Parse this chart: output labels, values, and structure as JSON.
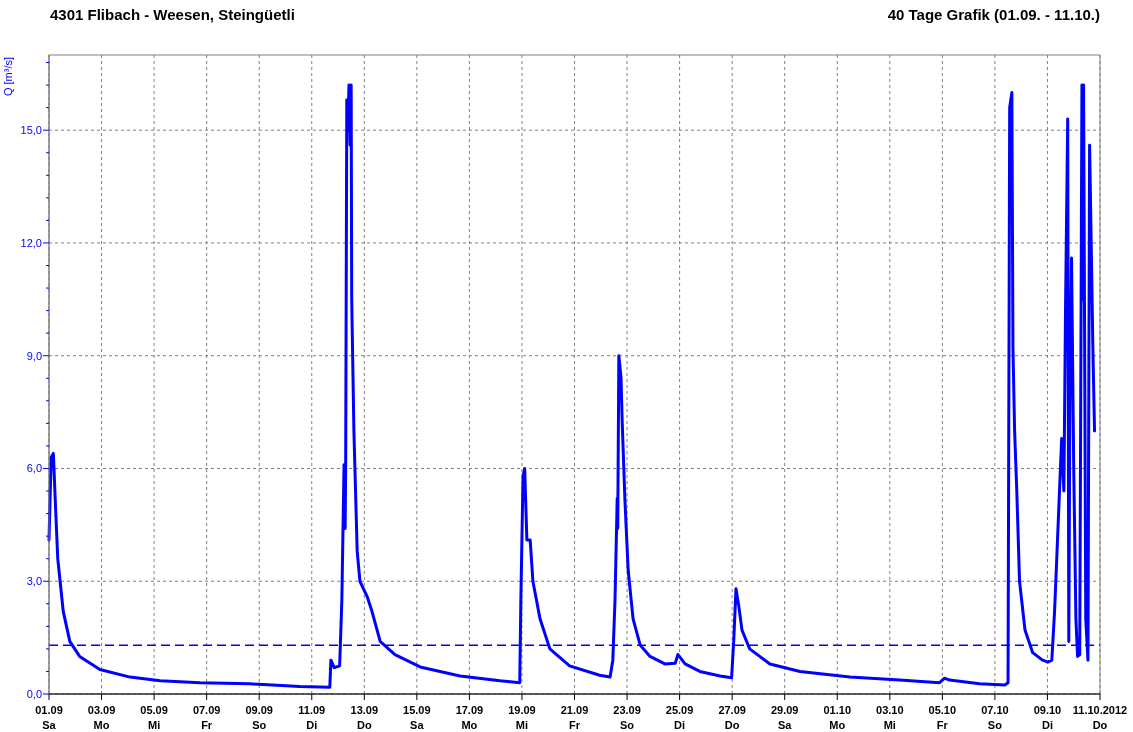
{
  "chart_data": {
    "type": "line",
    "title": "4301 Flibach - Weesen, Steingüetli",
    "subtitle": "40 Tage Grafik (01.09. - 11.10.)",
    "ylabel": "Q [m³/s]",
    "xlim": [
      "2012-09-01",
      "2012-10-11"
    ],
    "xticks": [
      {
        "value": "2012-09-01",
        "label": "01.09\nSa"
      },
      {
        "value": "2012-09-03",
        "label": "03.09\nMo"
      },
      {
        "value": "2012-09-05",
        "label": "05.09\nMi"
      },
      {
        "value": "2012-09-07",
        "label": "07.09\nFr"
      },
      {
        "value": "2012-09-09",
        "label": "09.09\nSo"
      },
      {
        "value": "2012-09-11",
        "label": "11.09\nDi"
      },
      {
        "value": "2012-09-13",
        "label": "13.09\nDo"
      },
      {
        "value": "2012-09-15",
        "label": "15.09\nSa"
      },
      {
        "value": "2012-09-17",
        "label": "17.09\nMo"
      },
      {
        "value": "2012-09-19",
        "label": "19.09\nMi"
      },
      {
        "value": "2012-09-21",
        "label": "21.09\nFr"
      },
      {
        "value": "2012-09-23",
        "label": "23.09\nSo"
      },
      {
        "value": "2012-09-25",
        "label": "25.09\nDi"
      },
      {
        "value": "2012-09-27",
        "label": "27.09\nDo"
      },
      {
        "value": "2012-09-29",
        "label": "29.09\nSa"
      },
      {
        "value": "2012-10-01",
        "label": "01.10\nMo"
      },
      {
        "value": "2012-10-03",
        "label": "03.10\nMi"
      },
      {
        "value": "2012-10-05",
        "label": "05.10\nFr"
      },
      {
        "value": "2012-10-07",
        "label": "07.10\nSo"
      },
      {
        "value": "2012-10-09",
        "label": "09.10\nDi"
      },
      {
        "value": "2012-10-11",
        "label": "11.10.2012\nDo"
      }
    ],
    "ylim": [
      0,
      17
    ],
    "yticks": [
      {
        "value": 0,
        "label": "0,0"
      },
      {
        "value": 0.6,
        "label": null
      },
      {
        "value": 1.2,
        "label": null
      },
      {
        "value": 1.8,
        "label": null
      },
      {
        "value": 2.4,
        "label": null
      },
      {
        "value": 3,
        "label": "3,0"
      },
      {
        "value": 3.6,
        "label": null
      },
      {
        "value": 4.2,
        "label": null
      },
      {
        "value": 4.8,
        "label": null
      },
      {
        "value": 5.4,
        "label": null
      },
      {
        "value": 6,
        "label": "6,0"
      },
      {
        "value": 6.6,
        "label": null
      },
      {
        "value": 7.2,
        "label": null
      },
      {
        "value": 7.8,
        "label": null
      },
      {
        "value": 8.4,
        "label": null
      },
      {
        "value": 9,
        "label": "9,0"
      },
      {
        "value": 9.6,
        "label": null
      },
      {
        "value": 10.2,
        "label": null
      },
      {
        "value": 10.8,
        "label": null
      },
      {
        "value": 11.4,
        "label": null
      },
      {
        "value": 12,
        "label": "12,0"
      },
      {
        "value": 12.6,
        "label": null
      },
      {
        "value": 13.2,
        "label": null
      },
      {
        "value": 13.8,
        "label": null
      },
      {
        "value": 14.4,
        "label": null
      },
      {
        "value": 15,
        "label": "15,0"
      },
      {
        "value": 15.6,
        "label": null
      },
      {
        "value": 16.2,
        "label": null
      },
      {
        "value": 16.8,
        "label": null
      }
    ],
    "grid": true,
    "line_style": "solid",
    "marker": "none",
    "ref_lines": [
      {
        "axis": "y",
        "value": 1.3,
        "label": null,
        "color": "#0000ff",
        "line_style": "dashed"
      }
    ],
    "series": [
      {
        "color": "#0000ff",
        "x": [
          "2012-09-01T00:00",
          "2012-09-01T02:00",
          "2012-09-01T04:00",
          "2012-09-01T05:30",
          "2012-09-01T08:00",
          "2012-09-01T13:00",
          "2012-09-01T19:00",
          "2012-09-02T04:00",
          "2012-09-02T22:30",
          "2012-09-04T02:00",
          "2012-09-05T05:30",
          "2012-09-06T18:00",
          "2012-09-08T15:30",
          "2012-09-10T13:00",
          "2012-09-11T16:30",
          "2012-09-11T17:30",
          "2012-09-11T20:30",
          "2012-09-12T01:30",
          "2012-09-12T03:30",
          "2012-09-12T05:30",
          "2012-09-12T06:30",
          "2012-09-12T07:00",
          "2012-09-12T08:00",
          "2012-09-12T09:00",
          "2012-09-12T10:00",
          "2012-09-12T11:00",
          "2012-09-12T12:00",
          "2012-09-12T12:30",
          "2012-09-12T14:30",
          "2012-09-12T17:30",
          "2012-09-12T20:00",
          "2012-09-13T02:30",
          "2012-09-13T07:00",
          "2012-09-13T14:30",
          "2012-09-14T04:00",
          "2012-09-15T03:00",
          "2012-09-16T15:30",
          "2012-09-18T04:00",
          "2012-09-18T22:00",
          "2012-09-18T23:00",
          "2012-09-19T01:00",
          "2012-09-19T02:30",
          "2012-09-19T04:30",
          "2012-09-19T07:30",
          "2012-09-19T10:00",
          "2012-09-19T16:30",
          "2012-09-20T01:30",
          "2012-09-20T19:30",
          "2012-09-21T23:00",
          "2012-09-22T08:30",
          "2012-09-22T11:00",
          "2012-09-22T13:00",
          "2012-09-22T15:00",
          "2012-09-22T15:30",
          "2012-09-22T16:30",
          "2012-09-22T18:30",
          "2012-09-22T19:30",
          "2012-09-22T22:00",
          "2012-09-23T01:00",
          "2012-09-23T05:30",
          "2012-09-23T12:00",
          "2012-09-23T21:00",
          "2012-09-24T10:30",
          "2012-09-24T20:00",
          "2012-09-24T22:30",
          "2012-09-25T05:00",
          "2012-09-25T18:30",
          "2012-09-26T13:00",
          "2012-09-26T23:30",
          "2012-09-27T01:30",
          "2012-09-27T03:30",
          "2012-09-27T06:00",
          "2012-09-27T09:00",
          "2012-09-27T16:00",
          "2012-09-28T10:30",
          "2012-09-29T14:00",
          "2012-10-01T11:30",
          "2012-10-03T09:00",
          "2012-10-04T21:30",
          "2012-10-05T02:00",
          "2012-10-05T06:30",
          "2012-10-06T10:00",
          "2012-10-07T09:00",
          "2012-10-07T12:00",
          "2012-10-07T13:30",
          "2012-10-07T15:30",
          "2012-10-07T16:30",
          "2012-10-07T18:00",
          "2012-10-07T20:00",
          "2012-10-07T22:30",
          "2012-10-08T03:30",
          "2012-10-08T10:30",
          "2012-10-08T19:30",
          "2012-10-09T00:30",
          "2012-10-09T04:00",
          "2012-10-09T06:30",
          "2012-10-09T08:30",
          "2012-10-09T11:00",
          "2012-10-09T13:00",
          "2012-10-09T15:00",
          "2012-10-09T16:30",
          "2012-10-09T18:30",
          "2012-10-09T19:30",
          "2012-10-09T20:30",
          "2012-10-09T22:00",
          "2012-10-10T00:00",
          "2012-10-10T02:00",
          "2012-10-10T03:30",
          "2012-10-10T05:30",
          "2012-10-10T07:30",
          "2012-10-10T08:00",
          "2012-10-10T09:00",
          "2012-10-10T11:00",
          "2012-10-10T13:00",
          "2012-10-10T14:30",
          "2012-10-10T17:30",
          "2012-10-10T19:00"
        ],
        "values": [
          4.1,
          6.3,
          6.4,
          5.3,
          3.6,
          2.2,
          1.4,
          1.0,
          0.65,
          0.45,
          0.35,
          0.3,
          0.27,
          0.2,
          0.18,
          0.9,
          0.7,
          0.75,
          2.5,
          6.1,
          4.4,
          6.1,
          15.8,
          15.0,
          16.2,
          14.6,
          16.2,
          10.5,
          7.0,
          3.8,
          3.0,
          2.6,
          2.2,
          1.4,
          1.05,
          0.72,
          0.48,
          0.35,
          0.3,
          2.5,
          5.8,
          6.0,
          4.1,
          4.1,
          3.0,
          2.0,
          1.2,
          0.75,
          0.5,
          0.45,
          0.9,
          2.5,
          5.2,
          4.4,
          9.0,
          8.4,
          7.3,
          5.2,
          3.3,
          2.0,
          1.3,
          1.0,
          0.8,
          0.82,
          1.05,
          0.8,
          0.6,
          0.48,
          0.43,
          1.45,
          2.8,
          2.35,
          1.7,
          1.2,
          0.8,
          0.6,
          0.45,
          0.37,
          0.3,
          0.42,
          0.37,
          0.27,
          0.24,
          0.3,
          15.6,
          16.0,
          9.2,
          7.0,
          5.4,
          3.0,
          1.7,
          1.1,
          0.9,
          0.85,
          0.9,
          2.2,
          3.6,
          5.4,
          6.8,
          5.4,
          10.2,
          15.3,
          1.4,
          7.8,
          11.6,
          6.0,
          2.0,
          1.0,
          1.05,
          16.2,
          10.5,
          16.2,
          2.0,
          0.9,
          14.6,
          9.2,
          7.0
        ]
      }
    ]
  }
}
